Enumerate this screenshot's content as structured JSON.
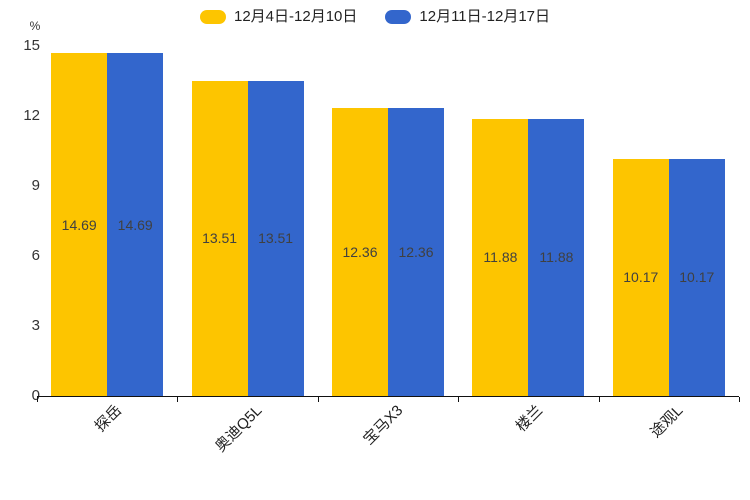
{
  "chart_data": {
    "type": "bar",
    "title": "",
    "ylabel": "%",
    "categories": [
      "探岳",
      "奥迪Q5L",
      "宝马X3",
      "楼兰",
      "途观L"
    ],
    "series": [
      {
        "name": "12月4日-12月10日",
        "color": "#FDC500",
        "values": [
          14.69,
          13.51,
          12.36,
          11.88,
          10.17
        ]
      },
      {
        "name": "12月11日-12月17日",
        "color": "#3366CC",
        "values": [
          14.69,
          13.51,
          12.36,
          11.88,
          10.17
        ]
      }
    ],
    "value_labels": [
      "14.69",
      "13.51",
      "12.36",
      "11.88",
      "10.17"
    ],
    "y_axis": {
      "min": 0,
      "max": 15,
      "ticks": [
        0,
        3,
        6,
        9,
        12,
        15
      ]
    },
    "legend_position": "top",
    "grid": false,
    "value_label_position": "inside-center"
  }
}
